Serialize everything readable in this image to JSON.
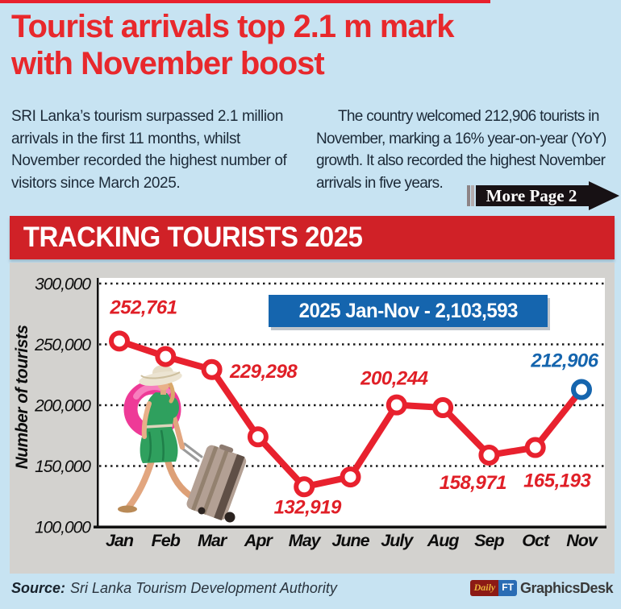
{
  "page": {
    "headline": "Tourist arrivals top 2.1 m mark\nwith November boost",
    "col_left": "SRI Lanka’s tourism surpassed 2.1 million\narrivals in the first 11 months, whilst\nNovember recorded the highest number of\nvisitors since March 2025.",
    "col_right": "The country welcomed 212,906 tourists in\nNovember, marking a 16% year-on-year (YoY)\ngrowth. It also recorded the highest November\narrivals in five years.",
    "more_label": "More Page 2",
    "banner_title": "TRACKING TOURISTS 2025",
    "source_label": "Source:",
    "source_text": "Sri Lanka Tourism Development Authority",
    "logo": {
      "daily": "Daily",
      "ft": "FT",
      "desk": "GraphicsDesk"
    }
  },
  "chart_data": {
    "type": "line",
    "title": "TRACKING TOURISTS 2025",
    "ylabel": "Number of tourists",
    "categories": [
      "Jan",
      "Feb",
      "Mar",
      "Apr",
      "May",
      "June",
      "July",
      "Aug",
      "Sep",
      "Oct",
      "Nov"
    ],
    "values": [
      252761,
      240000,
      229298,
      174000,
      132919,
      141000,
      200244,
      198000,
      158971,
      165193,
      212906
    ],
    "point_labels": [
      "252,761",
      "",
      "229,298",
      "",
      "132,919",
      "",
      "200,244",
      "",
      "158,971",
      "165,193",
      "212,906"
    ],
    "annotation": "2025 Jan-Nov -  2,103,593",
    "total_jan_nov": "2,103,593",
    "ylim": [
      100000,
      300000
    ],
    "ytick_values": [
      300000,
      250000,
      200000,
      150000,
      100000
    ],
    "ytick_labels": [
      "300,000",
      "250,000",
      "200,000",
      "150,000",
      "100,000"
    ],
    "grid": "dotted-horizontal",
    "legend": "none",
    "line_color": "#e8212e",
    "label_color": "#e01f27",
    "final_point_color": "#1565ae"
  },
  "colors": {
    "page_bg": "#c7e3f2",
    "headline_red": "#e8282c",
    "banner_red": "#d02127",
    "panel_gray": "#d3d2cf",
    "badge_blue": "#1565ae"
  }
}
